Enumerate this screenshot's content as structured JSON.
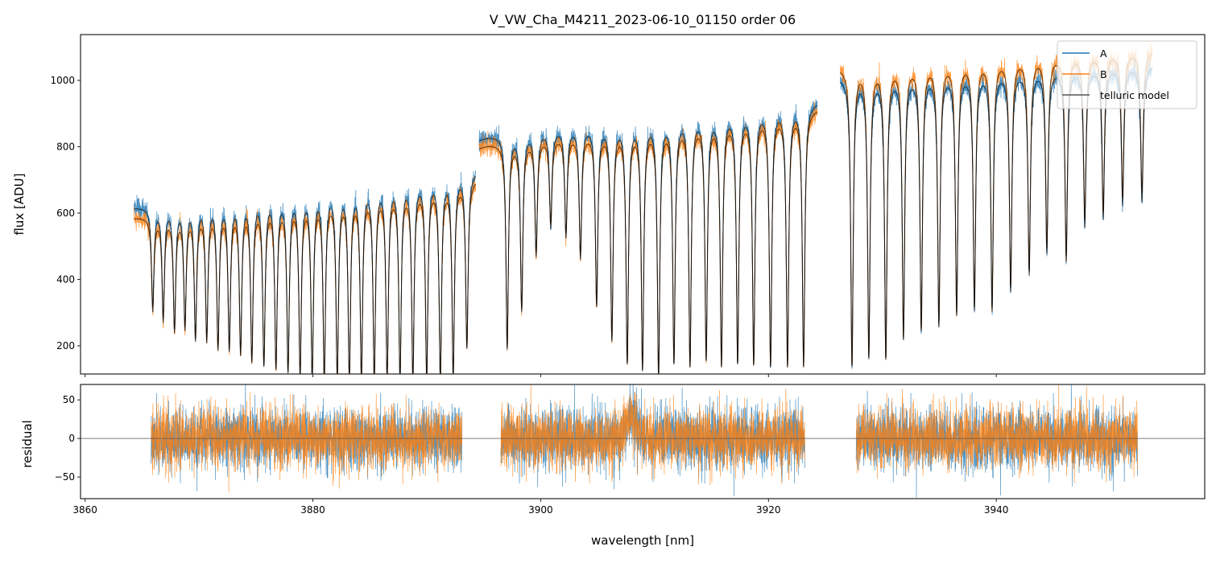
{
  "chart_data": [
    {
      "type": "line",
      "title": "V_VW_Cha_M4211_2023-06-10_01150  order 06",
      "xlabel": "",
      "ylabel": "flux [ADU]",
      "xlim": [
        3859.6,
        3958.3
      ],
      "ylim": [
        115,
        1138
      ],
      "xticks": [
        3860,
        3880,
        3900,
        3920,
        3940
      ],
      "yticks": [
        200,
        400,
        600,
        800,
        1000
      ],
      "ytick_labels": [
        "200",
        "400",
        "600",
        "800",
        "1000"
      ],
      "grid": false,
      "legend": {
        "placement": "top-right",
        "entries": [
          "A",
          "B",
          "telluric model"
        ]
      },
      "colors": {
        "A": "#1f77b4",
        "B": "#ff7f0e",
        "telluric model": "#000000"
      },
      "segments": [
        {
          "x_range": [
            3864.3,
            3894.3
          ],
          "continuum_A": [
            615,
            730
          ],
          "continuum_B": [
            585,
            705
          ]
        },
        {
          "x_range": [
            3894.6,
            3924.3
          ],
          "continuum_A": [
            830,
            935
          ],
          "continuum_B": [
            805,
            915
          ]
        },
        {
          "x_range": [
            3926.3,
            3953.7
          ],
          "continuum_A": [
            1010,
            1045
          ],
          "continuum_B": [
            1040,
            1090
          ]
        }
      ],
      "absorption_lines": {
        "wavelength": [
          3865.94,
          3866.86,
          3867.85,
          3868.77,
          3869.69,
          3870.68,
          3871.67,
          3872.66,
          3873.65,
          3874.64,
          3875.7,
          3876.76,
          3877.82,
          3878.88,
          3879.94,
          3881.0,
          3882.14,
          3883.2,
          3884.26,
          3885.39,
          3886.52,
          3887.65,
          3888.78,
          3889.99,
          3891.19,
          3892.32,
          3893.52,
          3897.06,
          3898.33,
          3899.6,
          3900.88,
          3902.22,
          3903.49,
          3904.91,
          3906.25,
          3907.6,
          3908.94,
          3910.35,
          3911.7,
          3913.11,
          3914.53,
          3915.87,
          3917.29,
          3918.7,
          3920.18,
          3921.67,
          3923.08,
          3927.33,
          3928.81,
          3930.3,
          3931.85,
          3933.41,
          3934.96,
          3936.52,
          3938.08,
          3939.63,
          3941.26,
          3942.89,
          3944.44,
          3946.14,
          3947.77,
          3949.39,
          3951.09,
          3952.79
        ],
        "min_flux": [
          321,
          290,
          256,
          265,
          229,
          225,
          200,
          195,
          183,
          159,
          147,
          135,
          127,
          110,
          100,
          100,
          100,
          100,
          100,
          100,
          100,
          100,
          100,
          100,
          100,
          110,
          200,
          197,
          314,
          487,
          574,
          544,
          477,
          329,
          222,
          150,
          130,
          110,
          150,
          140,
          160,
          140,
          150,
          145,
          140,
          140,
          140,
          137,
          161,
          160,
          219,
          244,
          258,
          292,
          307,
          305,
          364,
          413,
          479,
          455,
          559,
          583,
          624,
          634
        ]
      }
    },
    {
      "type": "line",
      "xlabel": "wavelength [nm]",
      "ylabel": "residual",
      "xlim": [
        3859.6,
        3958.3
      ],
      "ylim": [
        -78,
        70
      ],
      "xticks": [
        3860,
        3880,
        3900,
        3920,
        3940
      ],
      "xtick_labels": [
        "3860",
        "3880",
        "3900",
        "3920",
        "3940"
      ],
      "yticks": [
        -50,
        0,
        50
      ],
      "ytick_labels": [
        "−50",
        "0",
        "50"
      ],
      "zero_line": 0,
      "residual_std": 20,
      "segments": [
        [
          3865.8,
          3893.1
        ],
        [
          3896.5,
          3923.2
        ],
        [
          3927.7,
          3952.4
        ]
      ],
      "series": [
        "A",
        "B"
      ]
    }
  ]
}
